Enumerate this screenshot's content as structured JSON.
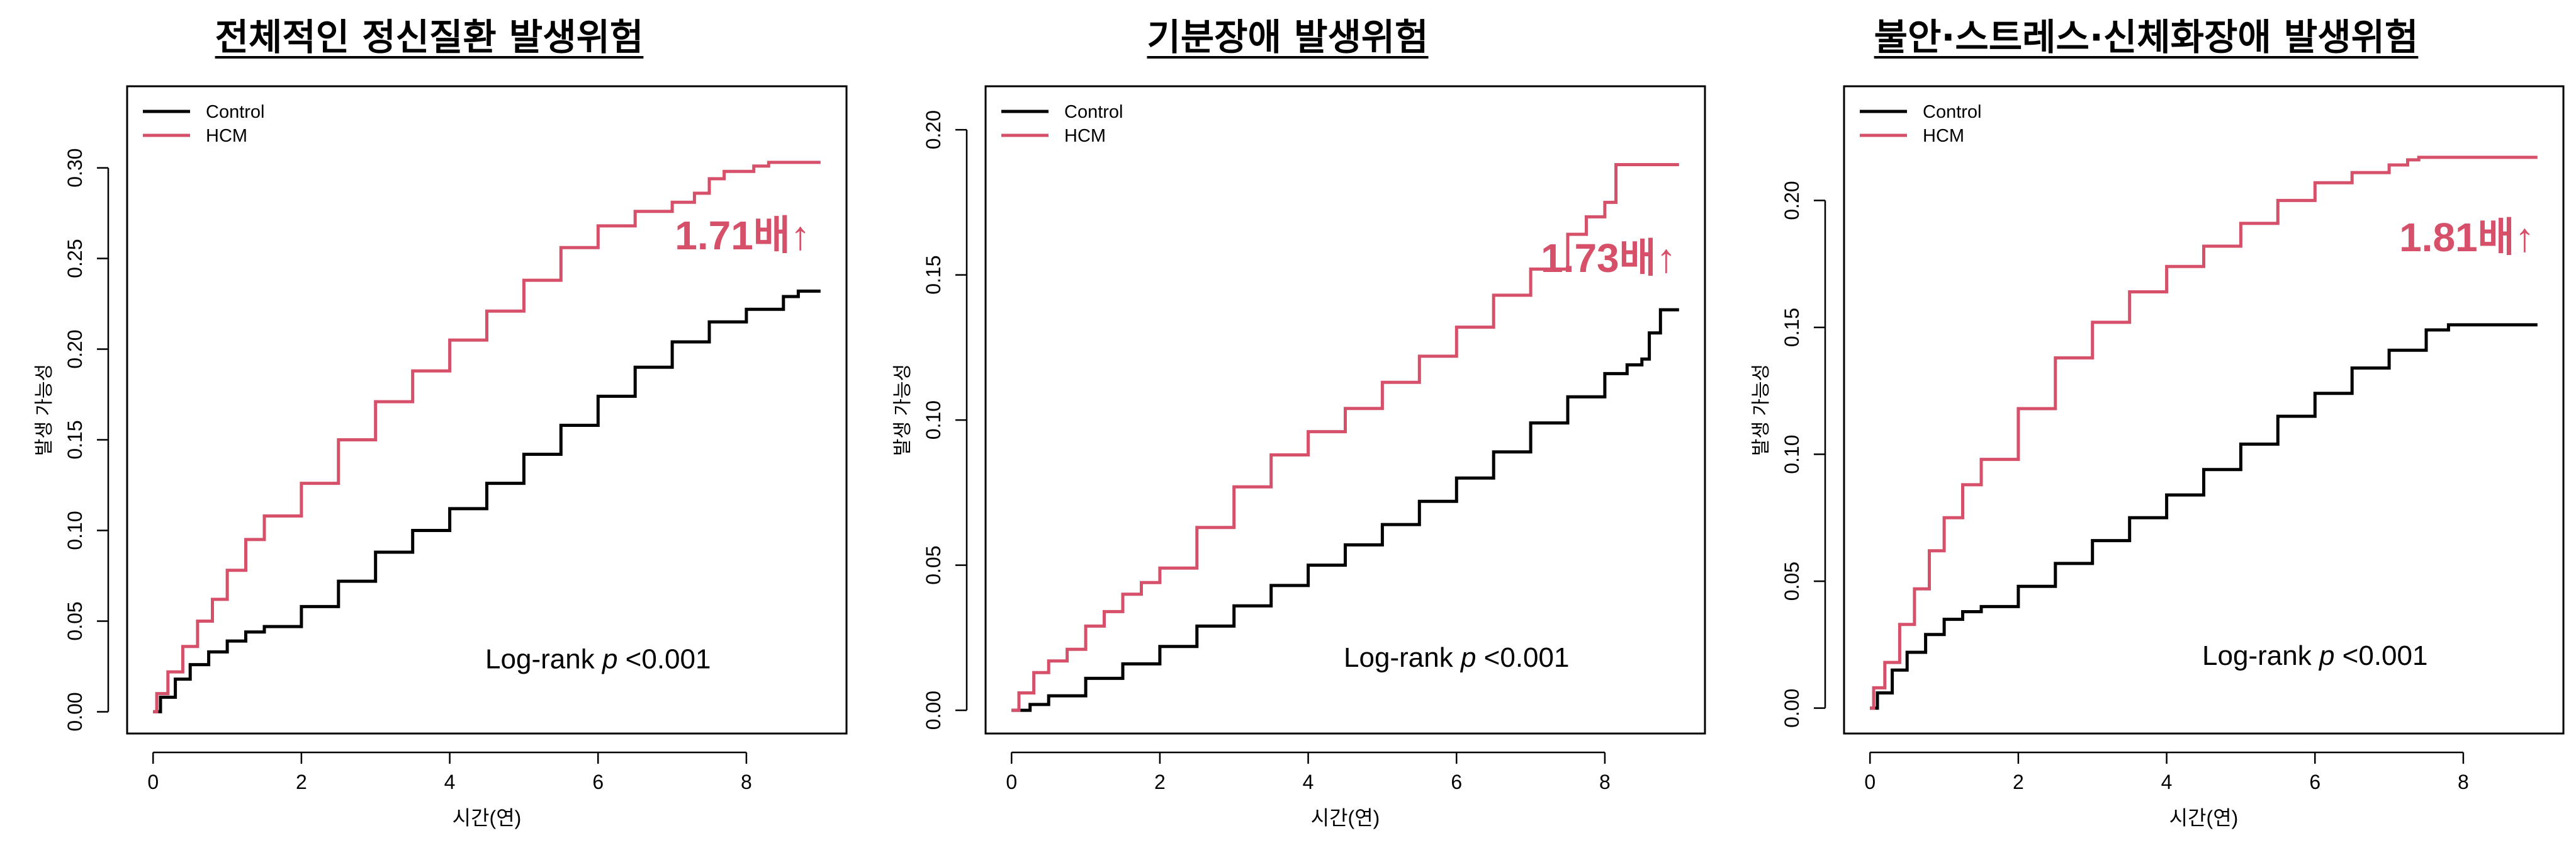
{
  "colors": {
    "control": "#000000",
    "hcm": "#d6506a",
    "hcm_text": "#d6506a"
  },
  "chart_data": [
    {
      "type": "line",
      "title": "전체적인 정신질환 발생위험",
      "xlabel": "시간(연)",
      "ylabel": "발생 가능성",
      "xlim": [
        -0.35,
        9.35
      ],
      "ylim": [
        -0.012,
        0.345
      ],
      "xticks": [
        0,
        2,
        4,
        6,
        8
      ],
      "yticks": [
        0.0,
        0.05,
        0.1,
        0.15,
        0.2,
        0.25,
        0.3
      ],
      "ytick_labels": [
        "0.00",
        "0.05",
        "0.10",
        "0.15",
        "0.20",
        "0.25",
        "0.30"
      ],
      "legend": {
        "position": "top-left",
        "entries": [
          "Control",
          "HCM"
        ]
      },
      "annotation": {
        "text": "1.71배↑",
        "x": 7.95,
        "y": 0.255
      },
      "logrank": {
        "prefix": "Log-rank ",
        "p": "p",
        "suffix": " <0.001",
        "x": 6.0,
        "y": 0.024
      },
      "series": [
        {
          "name": "Control",
          "x": [
            0,
            0.1,
            0.3,
            0.5,
            0.75,
            1.0,
            1.25,
            1.5,
            2.0,
            2.5,
            3.0,
            3.5,
            4.0,
            4.5,
            5.0,
            5.5,
            6.0,
            6.5,
            7.0,
            7.5,
            8.0,
            8.5,
            8.7,
            9.0
          ],
          "y": [
            0.0,
            0.008,
            0.018,
            0.026,
            0.033,
            0.039,
            0.044,
            0.047,
            0.058,
            0.072,
            0.088,
            0.1,
            0.112,
            0.126,
            0.142,
            0.158,
            0.174,
            0.19,
            0.204,
            0.215,
            0.222,
            0.229,
            0.232,
            0.232
          ]
        },
        {
          "name": "HCM",
          "x": [
            0,
            0.05,
            0.2,
            0.4,
            0.6,
            0.8,
            1.0,
            1.25,
            1.5,
            2.0,
            2.5,
            3.0,
            3.5,
            4.0,
            4.5,
            5.0,
            5.5,
            6.0,
            6.5,
            7.0,
            7.3,
            7.5,
            7.7,
            8.0,
            8.1,
            8.3,
            9.0
          ],
          "y": [
            0.0,
            0.01,
            0.022,
            0.036,
            0.05,
            0.062,
            0.078,
            0.095,
            0.108,
            0.126,
            0.15,
            0.171,
            0.188,
            0.205,
            0.221,
            0.238,
            0.256,
            0.268,
            0.276,
            0.281,
            0.286,
            0.294,
            0.298,
            0.298,
            0.301,
            0.303,
            0.303
          ]
        }
      ]
    },
    {
      "type": "line",
      "title": "기분장애 발생위험",
      "xlabel": "시간(연)",
      "ylabel": "발생 가능성",
      "xlim": [
        -0.35,
        9.35
      ],
      "ylim": [
        -0.008,
        0.215
      ],
      "xticks": [
        0,
        2,
        4,
        6,
        8
      ],
      "yticks": [
        0.0,
        0.05,
        0.1,
        0.15,
        0.2
      ],
      "ytick_labels": [
        "0.00",
        "0.05",
        "0.10",
        "0.15",
        "0.20"
      ],
      "legend": {
        "position": "top-left",
        "entries": [
          "Control",
          "HCM"
        ]
      },
      "annotation": {
        "text": "1.73배↑",
        "x": 8.05,
        "y": 0.151
      },
      "logrank": {
        "prefix": "Log-rank ",
        "p": "p",
        "suffix": " <0.001",
        "x": 6.0,
        "y": 0.015
      },
      "series": [
        {
          "name": "Control",
          "x": [
            0,
            0.25,
            0.5,
            1.0,
            1.5,
            2.0,
            2.5,
            3.0,
            3.5,
            4.0,
            4.5,
            5.0,
            5.5,
            6.0,
            6.5,
            7.0,
            7.5,
            8.0,
            8.3,
            8.5,
            8.6,
            8.75,
            9.0
          ],
          "y": [
            0.0,
            0.002,
            0.005,
            0.011,
            0.016,
            0.022,
            0.029,
            0.036,
            0.043,
            0.05,
            0.057,
            0.064,
            0.072,
            0.08,
            0.089,
            0.099,
            0.108,
            0.116,
            0.119,
            0.121,
            0.13,
            0.138,
            0.138
          ]
        },
        {
          "name": "HCM",
          "x": [
            0,
            0.1,
            0.3,
            0.5,
            0.75,
            1.0,
            1.25,
            1.5,
            1.75,
            2.0,
            2.5,
            3.0,
            3.5,
            4.0,
            4.5,
            5.0,
            5.5,
            6.0,
            6.5,
            7.0,
            7.5,
            7.75,
            8.0,
            8.15,
            8.3,
            9.0
          ],
          "y": [
            0.0,
            0.006,
            0.013,
            0.017,
            0.021,
            0.029,
            0.034,
            0.04,
            0.044,
            0.049,
            0.063,
            0.077,
            0.088,
            0.096,
            0.104,
            0.113,
            0.122,
            0.132,
            0.143,
            0.152,
            0.164,
            0.17,
            0.175,
            0.188,
            0.188,
            0.188
          ]
        }
      ]
    },
    {
      "type": "line",
      "title": "불안·스트레스·신체화장애 발생위험",
      "xlabel": "시간(연)",
      "ylabel": "발생 가능성",
      "xlim": [
        -0.35,
        9.35
      ],
      "ylim": [
        -0.01,
        0.245
      ],
      "xticks": [
        0,
        2,
        4,
        6,
        8
      ],
      "yticks": [
        0.0,
        0.05,
        0.1,
        0.15,
        0.2
      ],
      "ytick_labels": [
        "0.00",
        "0.05",
        "0.10",
        "0.15",
        "0.20"
      ],
      "legend": {
        "position": "top-left",
        "entries": [
          "Control",
          "HCM"
        ]
      },
      "annotation": {
        "text": "1.81배↑",
        "x": 8.05,
        "y": 0.18
      },
      "logrank": {
        "prefix": "Log-rank ",
        "p": "p",
        "suffix": " <0.001",
        "x": 6.0,
        "y": 0.017
      },
      "series": [
        {
          "name": "Control",
          "x": [
            0,
            0.1,
            0.3,
            0.5,
            0.75,
            1.0,
            1.25,
            1.5,
            2.0,
            2.5,
            3.0,
            3.5,
            4.0,
            4.5,
            5.0,
            5.5,
            6.0,
            6.5,
            7.0,
            7.5,
            7.8,
            8.0,
            9.0
          ],
          "y": [
            0.0,
            0.006,
            0.015,
            0.022,
            0.029,
            0.035,
            0.038,
            0.04,
            0.048,
            0.057,
            0.066,
            0.075,
            0.084,
            0.094,
            0.104,
            0.115,
            0.124,
            0.134,
            0.141,
            0.149,
            0.151,
            0.151,
            0.151
          ]
        },
        {
          "name": "HCM",
          "x": [
            0,
            0.05,
            0.2,
            0.4,
            0.6,
            0.8,
            1.0,
            1.25,
            1.5,
            2.0,
            2.5,
            3.0,
            3.5,
            4.0,
            4.5,
            5.0,
            5.5,
            6.0,
            6.5,
            7.0,
            7.25,
            7.4,
            9.0
          ],
          "y": [
            0.0,
            0.008,
            0.018,
            0.033,
            0.047,
            0.062,
            0.075,
            0.088,
            0.098,
            0.118,
            0.138,
            0.152,
            0.164,
            0.174,
            0.182,
            0.191,
            0.2,
            0.207,
            0.211,
            0.214,
            0.216,
            0.217,
            0.217
          ]
        }
      ]
    }
  ]
}
